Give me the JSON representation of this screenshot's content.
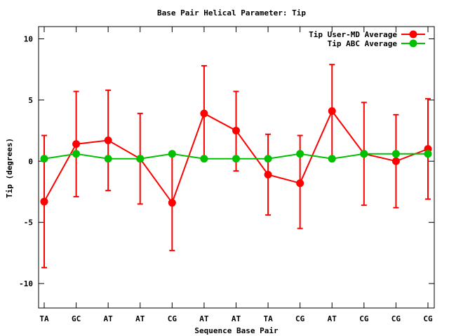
{
  "chart_data": {
    "type": "line",
    "title": "Base Pair Helical Parameter: Tip",
    "xlabel": "Sequence Base Pair",
    "ylabel": "Tip (degrees)",
    "categories": [
      "TA",
      "GC",
      "AT",
      "AT",
      "CG",
      "AT",
      "AT",
      "TA",
      "CG",
      "AT",
      "CG",
      "CG",
      "CG"
    ],
    "ylim": [
      -12,
      11
    ],
    "yticks": [
      10,
      5,
      0,
      -5,
      -10
    ],
    "ytick_labels": [
      "10",
      "5",
      "0",
      "-5",
      "-10"
    ],
    "grid": false,
    "legend_position": "top-right",
    "series": [
      {
        "name": "Tip User-MD Average",
        "color": "#ff0000",
        "values": [
          -3.3,
          1.4,
          1.7,
          0.2,
          -3.4,
          3.9,
          2.5,
          -1.1,
          -1.8,
          4.1,
          0.6,
          0.0,
          1.0
        ],
        "err_low": [
          -8.7,
          -2.9,
          -2.4,
          -3.5,
          -7.3,
          0.2,
          -0.8,
          -4.4,
          -5.5,
          0.2,
          -3.6,
          -3.8,
          -3.1
        ],
        "err_high": [
          2.1,
          5.7,
          5.8,
          3.9,
          0.5,
          7.8,
          5.7,
          2.2,
          2.1,
          7.9,
          4.8,
          3.8,
          5.1
        ]
      },
      {
        "name": "Tip ABC Average",
        "color": "#00c000",
        "values": [
          0.2,
          0.6,
          0.2,
          0.2,
          0.6,
          0.2,
          0.2,
          0.2,
          0.6,
          0.2,
          0.6,
          0.6,
          0.6
        ]
      }
    ]
  }
}
